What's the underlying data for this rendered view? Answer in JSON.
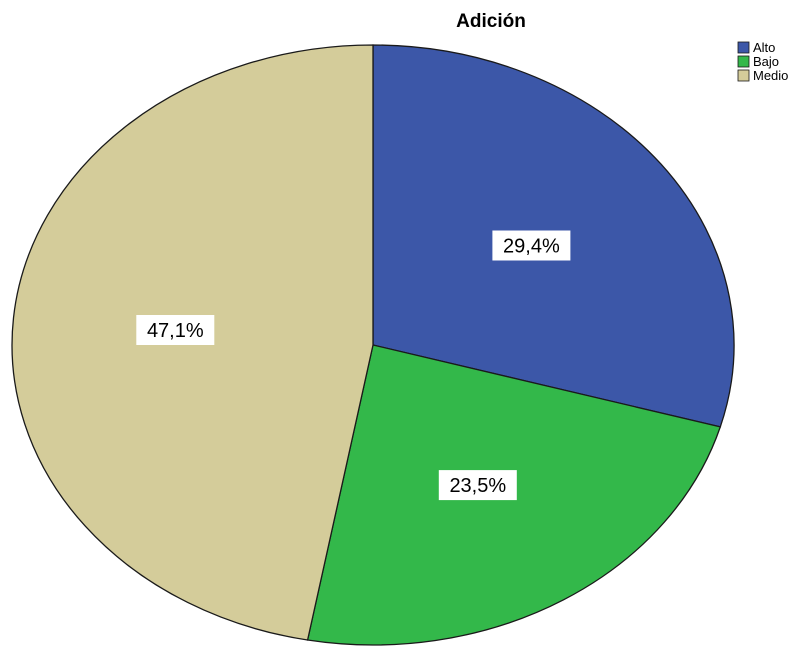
{
  "chart_data": {
    "type": "pie",
    "title": "Adición",
    "categories": [
      "Alto",
      "Bajo",
      "Medio"
    ],
    "values": [
      29.4,
      23.5,
      47.1
    ],
    "labels": [
      "29,4%",
      "23,5%",
      "47,1%"
    ],
    "colors": [
      "#3c57a8",
      "#33b84a",
      "#d4cc9a"
    ],
    "legend_placement": "top-right",
    "start": "12 o'clock",
    "direction": "clockwise"
  }
}
